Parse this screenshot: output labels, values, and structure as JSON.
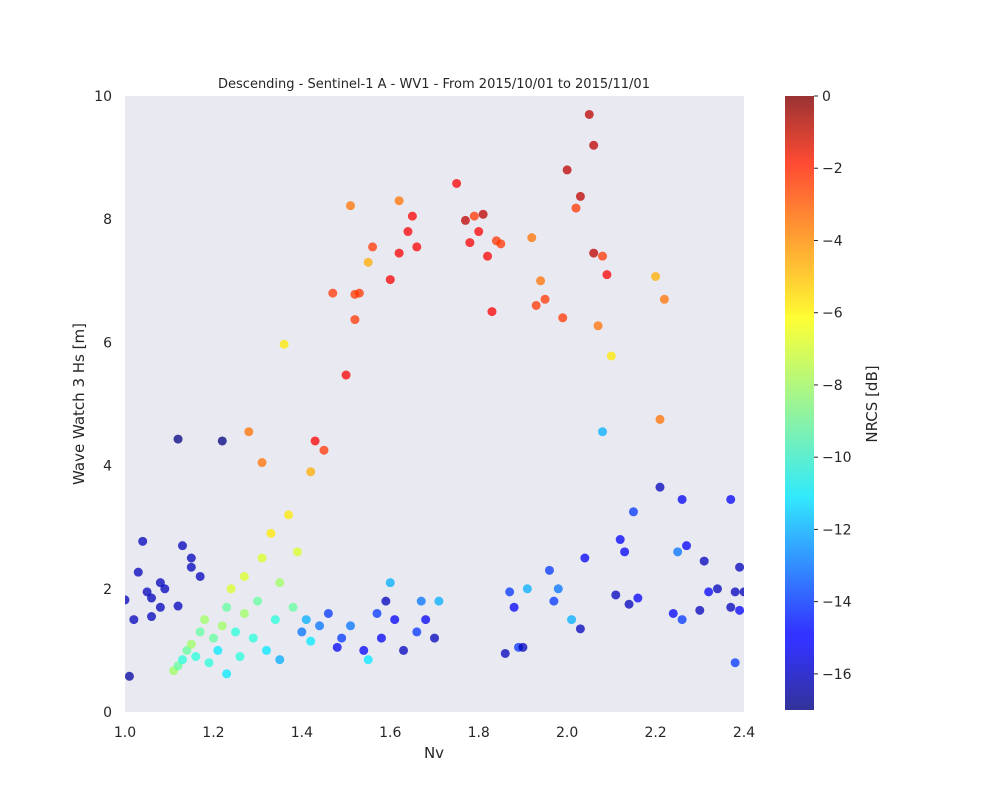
{
  "chart_data": {
    "type": "scatter",
    "title": "Descending - Sentinel-1 A - WV1 - From 2015/10/01 to 2015/11/01",
    "xlabel": "Nv",
    "ylabel": "Wave Watch 3 Hs [m]",
    "xlim": [
      1.0,
      2.4
    ],
    "ylim": [
      0,
      10
    ],
    "xticks": [
      "1.0",
      "1.2",
      "1.4",
      "1.6",
      "1.8",
      "2.0",
      "2.2",
      "2.4"
    ],
    "yticks": [
      "0",
      "2",
      "4",
      "6",
      "8",
      "10"
    ],
    "grid": false,
    "background": "#e9e9f1",
    "colorbar": {
      "label": "NRCS [dB]",
      "range": [
        -17,
        0
      ],
      "ticks": [
        "0",
        "−2",
        "−4",
        "−6",
        "−8",
        "−10",
        "−12",
        "−14",
        "−16"
      ],
      "tick_values": [
        0,
        -2,
        -4,
        -6,
        -8,
        -10,
        -12,
        -14,
        -16
      ],
      "colormap": "jet"
    },
    "points": [
      [
        1.01,
        0.58,
        -16.5
      ],
      [
        1.0,
        1.82,
        -16
      ],
      [
        1.02,
        1.5,
        -16
      ],
      [
        1.03,
        2.27,
        -16
      ],
      [
        1.04,
        2.77,
        -16
      ],
      [
        1.05,
        1.95,
        -16
      ],
      [
        1.06,
        1.85,
        -16
      ],
      [
        1.06,
        1.55,
        -16
      ],
      [
        1.08,
        1.7,
        -16
      ],
      [
        1.08,
        2.1,
        -16
      ],
      [
        1.09,
        2.0,
        -16
      ],
      [
        1.12,
        1.72,
        -16
      ],
      [
        1.13,
        2.7,
        -16
      ],
      [
        1.15,
        2.5,
        -16
      ],
      [
        1.15,
        2.35,
        -16
      ],
      [
        1.17,
        2.2,
        -16
      ],
      [
        1.12,
        4.43,
        -17
      ],
      [
        1.22,
        4.4,
        -17
      ],
      [
        1.11,
        0.67,
        -8
      ],
      [
        1.12,
        0.75,
        -9
      ],
      [
        1.13,
        0.85,
        -10
      ],
      [
        1.14,
        1.0,
        -9
      ],
      [
        1.15,
        1.1,
        -8
      ],
      [
        1.16,
        0.9,
        -10
      ],
      [
        1.17,
        1.3,
        -9
      ],
      [
        1.18,
        1.5,
        -8
      ],
      [
        1.19,
        0.8,
        -10
      ],
      [
        1.2,
        1.2,
        -9
      ],
      [
        1.21,
        1.0,
        -11
      ],
      [
        1.22,
        1.4,
        -8
      ],
      [
        1.23,
        0.62,
        -11
      ],
      [
        1.23,
        1.7,
        -9
      ],
      [
        1.24,
        2.0,
        -7
      ],
      [
        1.25,
        1.3,
        -10
      ],
      [
        1.26,
        0.9,
        -10
      ],
      [
        1.27,
        1.6,
        -8
      ],
      [
        1.27,
        2.2,
        -7
      ],
      [
        1.28,
        4.55,
        -4
      ],
      [
        1.29,
        1.2,
        -10
      ],
      [
        1.3,
        1.8,
        -9
      ],
      [
        1.31,
        2.5,
        -7
      ],
      [
        1.31,
        4.05,
        -4
      ],
      [
        1.32,
        1.0,
        -11
      ],
      [
        1.33,
        2.9,
        -6
      ],
      [
        1.34,
        1.5,
        -10
      ],
      [
        1.35,
        0.85,
        -12
      ],
      [
        1.35,
        2.1,
        -8
      ],
      [
        1.36,
        5.97,
        -6
      ],
      [
        1.37,
        3.2,
        -6
      ],
      [
        1.38,
        1.7,
        -9
      ],
      [
        1.39,
        2.6,
        -7
      ],
      [
        1.4,
        1.3,
        -13
      ],
      [
        1.41,
        1.5,
        -12
      ],
      [
        1.42,
        1.15,
        -11
      ],
      [
        1.42,
        3.9,
        -5
      ],
      [
        1.43,
        4.4,
        -2
      ],
      [
        1.44,
        1.4,
        -13
      ],
      [
        1.45,
        4.25,
        -3
      ],
      [
        1.46,
        1.6,
        -14
      ],
      [
        1.47,
        6.8,
        -3
      ],
      [
        1.48,
        1.05,
        -15
      ],
      [
        1.49,
        1.2,
        -14
      ],
      [
        1.5,
        5.47,
        -2
      ],
      [
        1.51,
        8.22,
        -4
      ],
      [
        1.51,
        1.4,
        -13
      ],
      [
        1.52,
        6.78,
        -3
      ],
      [
        1.53,
        6.8,
        -3
      ],
      [
        1.52,
        6.37,
        -3
      ],
      [
        1.54,
        1.0,
        -15
      ],
      [
        1.55,
        7.3,
        -5
      ],
      [
        1.56,
        7.55,
        -3
      ],
      [
        1.55,
        0.85,
        -11
      ],
      [
        1.57,
        1.6,
        -14
      ],
      [
        1.58,
        1.2,
        -15
      ],
      [
        1.59,
        1.8,
        -16
      ],
      [
        1.6,
        2.1,
        -12
      ],
      [
        1.6,
        7.02,
        -2
      ],
      [
        1.61,
        1.5,
        -15
      ],
      [
        1.62,
        8.3,
        -4
      ],
      [
        1.62,
        7.45,
        -2
      ],
      [
        1.63,
        1.0,
        -16
      ],
      [
        1.64,
        7.8,
        -2
      ],
      [
        1.65,
        8.05,
        -2
      ],
      [
        1.66,
        1.3,
        -14
      ],
      [
        1.66,
        7.55,
        -2
      ],
      [
        1.67,
        1.8,
        -13
      ],
      [
        1.68,
        1.5,
        -15
      ],
      [
        1.7,
        1.2,
        -16
      ],
      [
        1.71,
        1.8,
        -12
      ],
      [
        1.75,
        8.58,
        -2
      ],
      [
        1.77,
        7.98,
        -1
      ],
      [
        1.78,
        7.62,
        -2
      ],
      [
        1.79,
        8.05,
        -3
      ],
      [
        1.8,
        7.8,
        -2
      ],
      [
        1.81,
        8.08,
        -1
      ],
      [
        1.82,
        7.4,
        -2
      ],
      [
        1.83,
        6.5,
        -2
      ],
      [
        1.84,
        7.65,
        -3
      ],
      [
        1.85,
        7.6,
        -3
      ],
      [
        1.86,
        0.95,
        -16
      ],
      [
        1.87,
        1.95,
        -14
      ],
      [
        1.88,
        1.7,
        -15
      ],
      [
        1.89,
        1.05,
        -14
      ],
      [
        1.9,
        1.05,
        -16
      ],
      [
        1.91,
        2.0,
        -12
      ],
      [
        1.92,
        7.7,
        -4
      ],
      [
        1.93,
        6.6,
        -3
      ],
      [
        1.94,
        7.0,
        -4
      ],
      [
        1.95,
        6.7,
        -3
      ],
      [
        1.96,
        2.3,
        -14
      ],
      [
        1.97,
        1.8,
        -14
      ],
      [
        1.98,
        2.0,
        -13
      ],
      [
        1.99,
        6.4,
        -3
      ],
      [
        2.0,
        8.8,
        -1
      ],
      [
        2.01,
        1.5,
        -12
      ],
      [
        2.02,
        8.18,
        -3
      ],
      [
        2.03,
        8.37,
        -1
      ],
      [
        2.03,
        1.35,
        -16
      ],
      [
        2.04,
        2.5,
        -15
      ],
      [
        2.05,
        9.7,
        -1
      ],
      [
        2.06,
        9.2,
        -1
      ],
      [
        2.06,
        7.45,
        -1
      ],
      [
        2.07,
        6.27,
        -4
      ],
      [
        2.08,
        4.55,
        -12
      ],
      [
        2.08,
        7.4,
        -3
      ],
      [
        2.09,
        7.1,
        -2
      ],
      [
        2.1,
        5.78,
        -6
      ],
      [
        2.11,
        1.9,
        -16
      ],
      [
        2.12,
        2.8,
        -15
      ],
      [
        2.13,
        2.6,
        -15
      ],
      [
        2.14,
        1.75,
        -16
      ],
      [
        2.15,
        3.25,
        -14
      ],
      [
        2.16,
        1.85,
        -15
      ],
      [
        2.2,
        7.07,
        -5
      ],
      [
        2.21,
        4.75,
        -4
      ],
      [
        2.22,
        6.7,
        -4
      ],
      [
        2.21,
        3.65,
        -16
      ],
      [
        2.24,
        1.6,
        -15
      ],
      [
        2.25,
        2.6,
        -13
      ],
      [
        2.26,
        3.45,
        -15
      ],
      [
        2.26,
        1.5,
        -14
      ],
      [
        2.27,
        2.7,
        -15
      ],
      [
        2.3,
        1.65,
        -16
      ],
      [
        2.31,
        2.45,
        -16
      ],
      [
        2.32,
        1.95,
        -15
      ],
      [
        2.34,
        2.0,
        -16
      ],
      [
        2.37,
        3.45,
        -15
      ],
      [
        2.37,
        1.7,
        -16
      ],
      [
        2.38,
        1.95,
        -16
      ],
      [
        2.38,
        0.8,
        -14
      ],
      [
        2.39,
        2.35,
        -16
      ],
      [
        2.4,
        1.95,
        -16
      ],
      [
        2.39,
        1.65,
        -15
      ]
    ]
  }
}
